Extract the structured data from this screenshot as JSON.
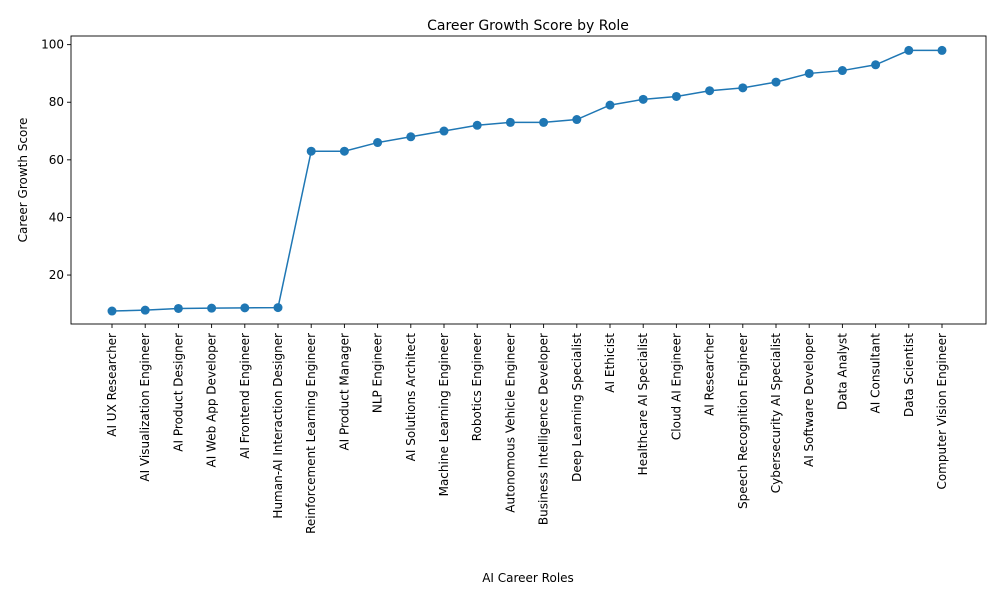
{
  "chart_data": {
    "type": "line",
    "title": "Career Growth Score by Role",
    "xlabel": "AI Career Roles",
    "ylabel": "Career Growth Score",
    "ylim": [
      3,
      103
    ],
    "yticks": [
      20,
      40,
      60,
      80,
      100
    ],
    "grid": false,
    "line_color": "#1f77b4",
    "categories": [
      "AI UX Researcher",
      "AI Visualization Engineer",
      "AI Product Designer",
      "AI Web App Developer",
      "AI Frontend Engineer",
      "Human-AI Interaction Designer",
      "Reinforcement Learning Engineer",
      "AI Product Manager",
      "NLP Engineer",
      "AI Solutions Architect",
      "Machine Learning Engineer",
      "Robotics Engineer",
      "Autonomous Vehicle Engineer",
      "Business Intelligence Developer",
      "Deep Learning Specialist",
      "AI Ethicist",
      "Healthcare AI Specialist",
      "Cloud AI Engineer",
      "AI Researcher",
      "Speech Recognition Engineer",
      "Cybersecurity AI Specialist",
      "AI Software Developer",
      "Data Analyst",
      "AI Consultant",
      "Data Scientist",
      "Computer Vision Engineer"
    ],
    "values": [
      7.5,
      7.8,
      8.4,
      8.5,
      8.6,
      8.7,
      63,
      63,
      66,
      68,
      70,
      72,
      73,
      73,
      74,
      79,
      81,
      82,
      84,
      85,
      87,
      90,
      91,
      93,
      98,
      98
    ]
  }
}
